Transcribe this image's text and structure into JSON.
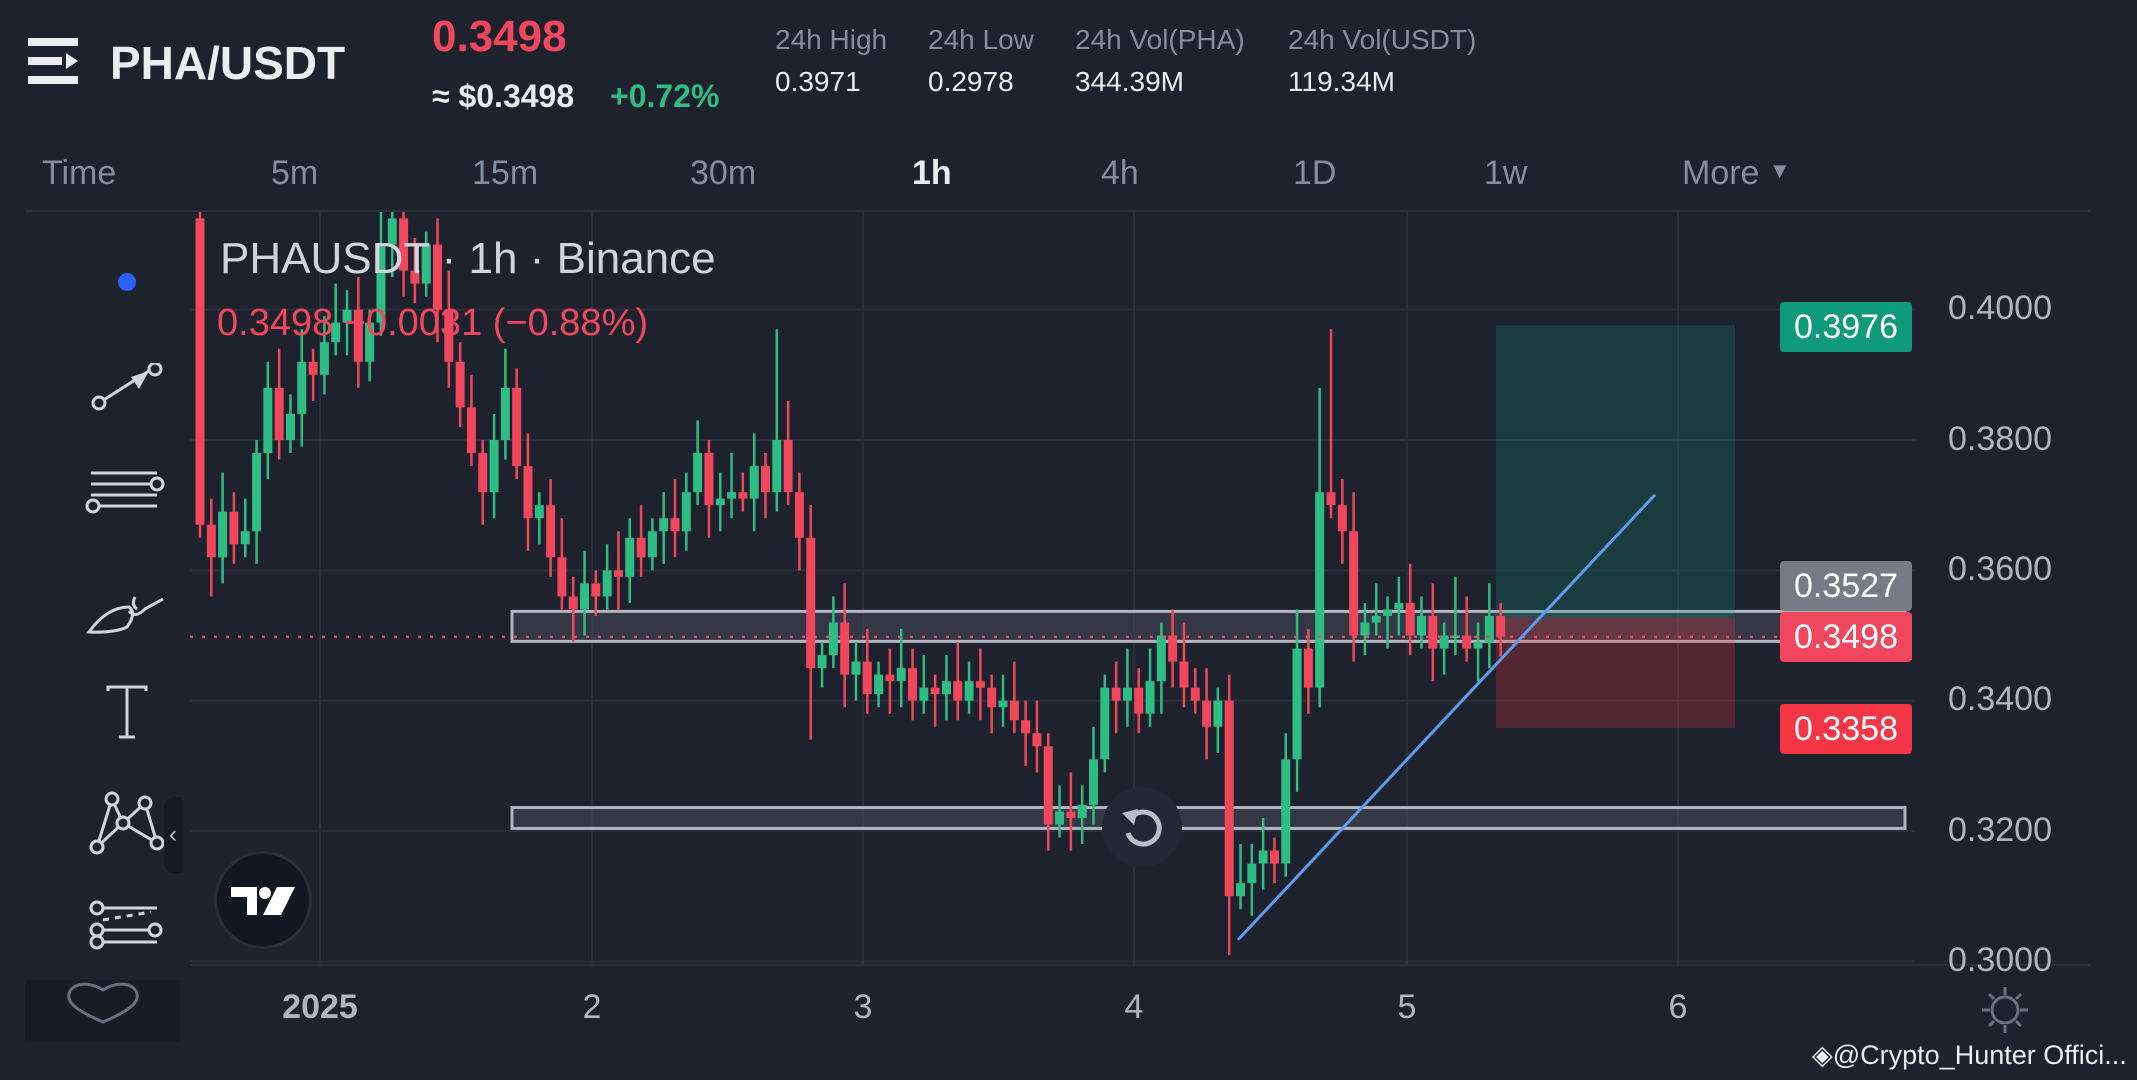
{
  "header": {
    "pair": "PHA/USDT",
    "last_price": "0.3498",
    "usd_price": "≈ $0.3498",
    "change_pct": "+0.72%",
    "stats": [
      {
        "label": "24h High",
        "value": "0.3971"
      },
      {
        "label": "24h Low",
        "value": "0.2978"
      },
      {
        "label": "24h Vol(PHA)",
        "value": "344.39M"
      },
      {
        "label": "24h Vol(USDT)",
        "value": "119.34M"
      }
    ]
  },
  "timeframes": {
    "items": [
      "Time",
      "5m",
      "15m",
      "30m",
      "1h",
      "4h",
      "1D",
      "1w",
      "More"
    ],
    "active": "1h"
  },
  "toolbar": {
    "items": [
      "crosshair-dot",
      "trend-arrow",
      "parallel-lines",
      "brush",
      "text",
      "pattern",
      "fib-retracement",
      "favorites-heart"
    ]
  },
  "legend": {
    "title": "PHAUSDT · 1h · Binance",
    "values": "0.3498 −0.0031 (−0.88%)"
  },
  "price_axis": {
    "labels": [
      "0.4000",
      "0.3800",
      "0.3600",
      "0.3400",
      "0.3200",
      "0.3000"
    ],
    "tags": {
      "take_profit": "0.3976",
      "entry": "0.3527",
      "last": "0.3498",
      "stop_loss": "0.3358"
    }
  },
  "date_axis": {
    "labels": [
      "2025",
      "2",
      "3",
      "4",
      "5",
      "6"
    ]
  },
  "colors": {
    "up": "#2ebd85",
    "down": "#f0475f",
    "background": "#1e222d",
    "accent_blue": "#2962ff",
    "trendline": "#5b9cf0"
  },
  "chart_data": {
    "type": "candlestick",
    "interval": "1h",
    "first_open": 0.414,
    "closes": [
      0.367,
      0.362,
      0.369,
      0.364,
      0.366,
      0.378,
      0.388,
      0.38,
      0.384,
      0.392,
      0.39,
      0.395,
      0.398,
      0.4,
      0.392,
      0.398,
      0.41,
      0.414,
      0.406,
      0.404,
      0.41,
      0.4,
      0.392,
      0.385,
      0.378,
      0.372,
      0.38,
      0.388,
      0.376,
      0.368,
      0.37,
      0.362,
      0.356,
      0.354,
      0.358,
      0.356,
      0.36,
      0.359,
      0.365,
      0.362,
      0.366,
      0.368,
      0.366,
      0.372,
      0.378,
      0.37,
      0.371,
      0.372,
      0.371,
      0.376,
      0.372,
      0.38,
      0.372,
      0.365,
      0.345,
      0.347,
      0.352,
      0.344,
      0.346,
      0.341,
      0.344,
      0.343,
      0.345,
      0.34,
      0.342,
      0.341,
      0.343,
      0.34,
      0.343,
      0.342,
      0.339,
      0.34,
      0.337,
      0.335,
      0.333,
      0.321,
      0.323,
      0.322,
      0.324,
      0.331,
      0.342,
      0.34,
      0.342,
      0.338,
      0.343,
      0.35,
      0.346,
      0.342,
      0.34,
      0.336,
      0.34,
      0.31,
      0.312,
      0.315,
      0.317,
      0.315,
      0.331,
      0.348,
      0.342,
      0.372,
      0.37,
      0.366,
      0.35,
      0.352,
      0.353,
      0.354,
      0.355,
      0.35,
      0.353,
      0.348,
      0.35,
      0.35,
      0.348,
      0.349,
      0.353,
      0.3498
    ],
    "high_overrides": {
      "16": 0.416,
      "51": 0.397,
      "99": 0.388,
      "100": 0.397,
      "111": 0.359
    },
    "low_overrides": {
      "1": 0.356,
      "54": 0.334,
      "91": 0.301,
      "75": 0.317
    },
    "zones": [
      {
        "top": 0.3537,
        "bottom": 0.3491
      },
      {
        "top": 0.3236,
        "bottom": 0.3204
      }
    ],
    "position": {
      "entry": 0.3527,
      "take_profit": 0.3976,
      "stop_loss": 0.3358
    },
    "trendline": {
      "start_price": 0.3033,
      "end_price": 0.3716
    },
    "last_price_line": 0.3498,
    "ylim": [
      0.2985,
      0.42
    ]
  },
  "watermark": "@Crypto_Hunter Offici..."
}
